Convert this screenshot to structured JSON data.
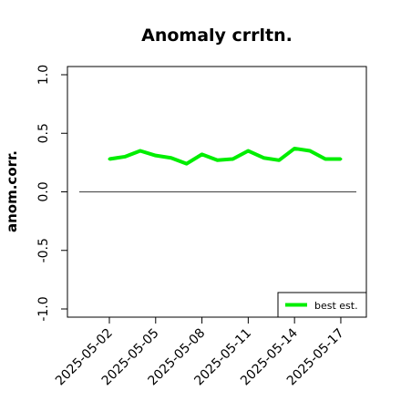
{
  "chart_data": {
    "type": "line",
    "title": "Anomaly crrltn.",
    "xlabel": "",
    "ylabel": "anom.corr.",
    "ylim": [
      -1.07,
      1.07
    ],
    "yticks": [
      -1.0,
      -0.5,
      0.0,
      0.5,
      1.0
    ],
    "ytick_labels": [
      "-1.0",
      "-0.5",
      "0.0",
      "0.5",
      "1.0"
    ],
    "x": [
      "2025-05-02",
      "2025-05-03",
      "2025-05-04",
      "2025-05-05",
      "2025-05-06",
      "2025-05-07",
      "2025-05-08",
      "2025-05-09",
      "2025-05-10",
      "2025-05-11",
      "2025-05-12",
      "2025-05-13",
      "2025-05-14",
      "2025-05-15",
      "2025-05-16",
      "2025-05-17"
    ],
    "xtick_labels": [
      "2025-05-02",
      "2025-05-05",
      "2025-05-08",
      "2025-05-11",
      "2025-05-14",
      "2025-05-17"
    ],
    "highlight_tick": "2025-05-08",
    "highlight_color": "#228B22",
    "series": [
      {
        "name": "best est.",
        "color": "#00ee00",
        "values": [
          0.28,
          0.3,
          0.35,
          0.31,
          0.29,
          0.24,
          0.32,
          0.27,
          0.28,
          0.35,
          0.29,
          0.27,
          0.37,
          0.35,
          0.28,
          0.28
        ]
      }
    ],
    "reference_line": {
      "y": 0.0,
      "color": "#555555"
    },
    "legend_position": "bottom-right",
    "grid": false
  }
}
